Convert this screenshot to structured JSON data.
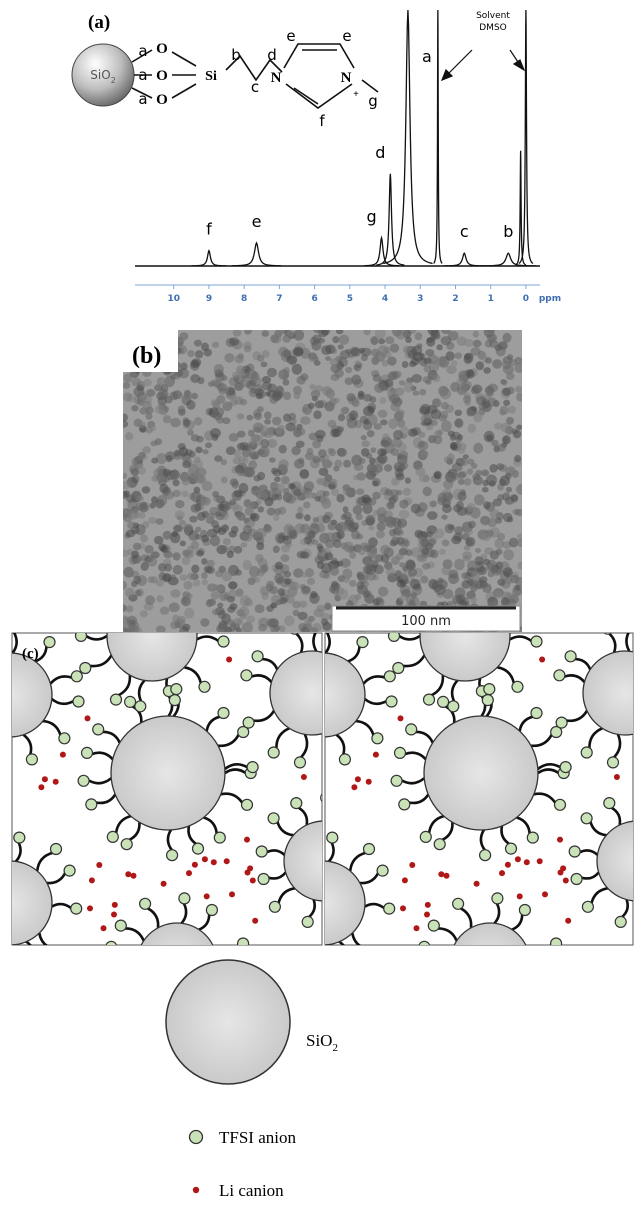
{
  "panel_a": {
    "label": "(a)",
    "structure": {
      "particle": {
        "main": "SiO",
        "sub": "2"
      },
      "atoms": [
        "O",
        "O",
        "O",
        "Si",
        "N",
        "N",
        "+"
      ],
      "site_labels": [
        "a",
        "a",
        "a",
        "b",
        "c",
        "d",
        "e",
        "e",
        "f",
        "g"
      ]
    },
    "solvent_note": [
      "Solvent",
      "DMSO"
    ],
    "spectrum": {
      "x_label": "ppm",
      "xlim": [
        11.1,
        -0.4
      ],
      "xticks": [
        10,
        9,
        8,
        7,
        6,
        5,
        4,
        3,
        2,
        1,
        0
      ],
      "ylim": [
        0,
        100
      ],
      "peaks": [
        {
          "label": "f",
          "ppm": 9.0,
          "intensity": 6
        },
        {
          "label": "e",
          "ppm": 7.65,
          "intensity": 9
        },
        {
          "label": "g",
          "ppm": 4.1,
          "intensity": 11
        },
        {
          "label": "d",
          "ppm": 3.85,
          "intensity": 36
        },
        {
          "label": null,
          "ppm": 3.35,
          "intensity": 100
        },
        {
          "label": "a",
          "ppm": 2.5,
          "intensity": 100
        },
        {
          "label": "c",
          "ppm": 1.75,
          "intensity": 5
        },
        {
          "label": "b",
          "ppm": 0.5,
          "intensity": 5
        },
        {
          "label": null,
          "ppm": 0.15,
          "intensity": 45
        },
        {
          "label": null,
          "ppm": 0.0,
          "intensity": 100
        }
      ]
    }
  },
  "panel_b": {
    "label": "(b)",
    "scale_bar": "100 nm"
  },
  "panel_c": {
    "label": "(c)"
  },
  "legend": {
    "particle": {
      "main": "SiO",
      "sub": "2"
    },
    "anion": "TFSI anion",
    "cation": "Li canion"
  }
}
